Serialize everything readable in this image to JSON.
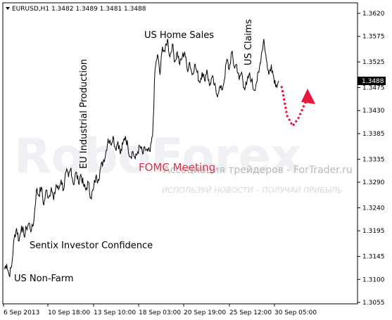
{
  "header": {
    "symbol_line": "EURUSD,H1  1.3482 1.3489 1.3481 1.3488"
  },
  "watermark": {
    "brand": "RoboForex",
    "site": "Ассоциация трейдеров - ForTrader.ru",
    "tagline": "ИСПОЛЬЗУЙ НОВОСТИ – ПОЛУЧАЙ ПРИБЫЛЬ"
  },
  "annotations": {
    "us_nonfarm": "US Non-Farm",
    "sentix": "Sentix Investor Confidence",
    "eu_industrial": "EU Industrial Production",
    "fomc": "FOMC Meeting",
    "us_home_sales": "US Home Sales",
    "us_claims": "US Claims"
  },
  "colors": {
    "price_line": "#000000",
    "forecast": "#e8173a",
    "current_price_bg": "#000000"
  },
  "chart_data": {
    "type": "line",
    "title": "EURUSD,H1",
    "current_price": "1.3488",
    "ylim": [
      1.3055,
      1.362
    ],
    "y_ticks": [
      "1.3620",
      "1.3575",
      "1.3525",
      "1.3475",
      "1.3430",
      "1.3385",
      "1.3335",
      "1.3290",
      "1.3240",
      "1.3195",
      "1.3145",
      "1.3100",
      "1.3055"
    ],
    "x_ticks": [
      "6 Sep 2013",
      "10 Sep 18:00",
      "13 Sep 10:00",
      "18 Sep 03:00",
      "20 Sep 19:00",
      "25 Sep 12:00",
      "30 Sep 05:00"
    ],
    "series": [
      {
        "values": [
          1.312,
          1.313,
          1.3108,
          1.3125,
          1.318,
          1.32,
          1.3175,
          1.3205,
          1.3185,
          1.32,
          1.321,
          1.3195,
          1.3215,
          1.3275,
          1.3265,
          1.328,
          1.3245,
          1.3275,
          1.326,
          1.328,
          1.3255,
          1.3285,
          1.3275,
          1.3295,
          1.3275,
          1.331,
          1.33,
          1.3318,
          1.3285,
          1.331,
          1.329,
          1.3305,
          1.3285,
          1.3275,
          1.329,
          1.326,
          1.3275,
          1.33,
          1.3295,
          1.3318,
          1.333,
          1.3345,
          1.3375,
          1.3365,
          1.338,
          1.3355,
          1.337,
          1.3345,
          1.3365,
          1.338,
          1.336,
          1.334,
          1.335,
          1.3335,
          1.335,
          1.336,
          1.3345,
          1.3355,
          1.335,
          1.335,
          1.338,
          1.351,
          1.354,
          1.35,
          1.3555,
          1.3545,
          1.357,
          1.3535,
          1.356,
          1.3525,
          1.3545,
          1.352,
          1.3535,
          1.3545,
          1.351,
          1.3525,
          1.35,
          1.352,
          1.3505,
          1.3485,
          1.3505,
          1.349,
          1.351,
          1.3478,
          1.3495,
          1.348,
          1.346,
          1.3475,
          1.347,
          1.349,
          1.353,
          1.351,
          1.3545,
          1.3515,
          1.352,
          1.349,
          1.3505,
          1.3475,
          1.348,
          1.35,
          1.349,
          1.347,
          1.3485,
          1.3505,
          1.354,
          1.357,
          1.353,
          1.35,
          1.352,
          1.3495,
          1.348,
          1.3488
        ]
      }
    ],
    "forecast": {
      "values": [
        1.3478,
        1.342,
        1.34,
        1.3415,
        1.344,
        1.346
      ]
    }
  }
}
